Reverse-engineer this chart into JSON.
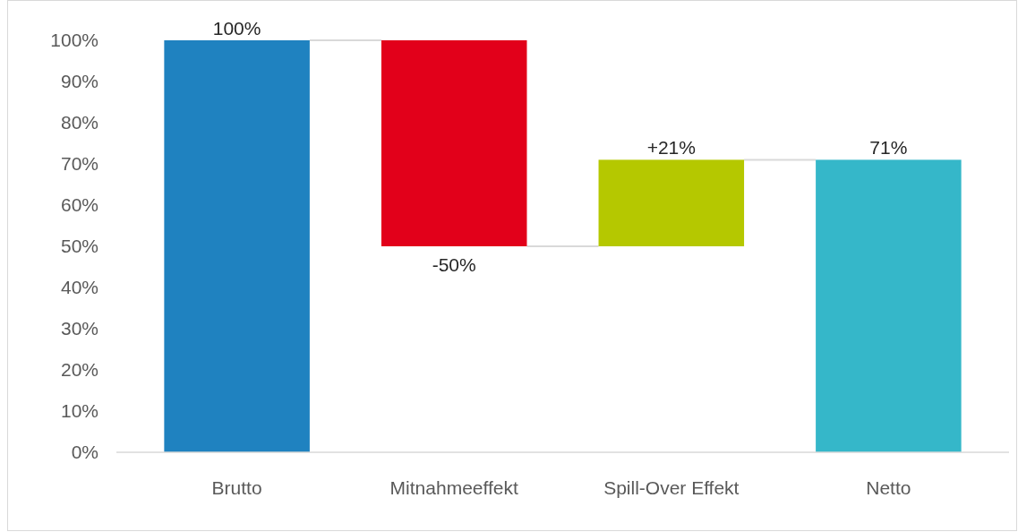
{
  "chart_data": {
    "type": "bar",
    "categories": [
      "Brutto",
      "Mitnahmeeffekt",
      "Spill-Over Effekt",
      "Netto"
    ],
    "values": [
      100,
      -50,
      21,
      71
    ],
    "base": [
      0,
      100,
      50,
      0
    ],
    "colors": [
      "#1f82c0",
      "#e2001a",
      "#b5c800",
      "#35b7c9"
    ],
    "value_labels": [
      "100%",
      "-50%",
      "+21%",
      "71%"
    ],
    "ylim": [
      0,
      100
    ],
    "yticks": [
      {
        "value": 0,
        "label": "0%"
      },
      {
        "value": 10,
        "label": "10%"
      },
      {
        "value": 20,
        "label": "20%"
      },
      {
        "value": 30,
        "label": "30%"
      },
      {
        "value": 40,
        "label": "40%"
      },
      {
        "value": 50,
        "label": "50%"
      },
      {
        "value": 60,
        "label": "60%"
      },
      {
        "value": 70,
        "label": "70%"
      },
      {
        "value": 80,
        "label": "80%"
      },
      {
        "value": 90,
        "label": "90%"
      },
      {
        "value": 100,
        "label": "100%"
      }
    ],
    "grid": false
  }
}
